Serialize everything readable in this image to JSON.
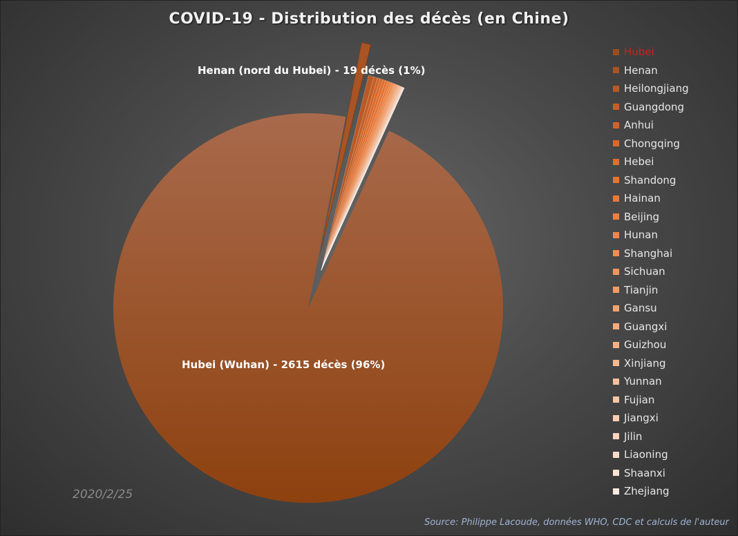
{
  "chart_data": {
    "type": "pie",
    "title": "COVID-19 - Distribution des décès (en Chine)",
    "date": "2020/2/25",
    "source": "Source: Philippe Lacoude, données WHO, CDC et calculs de l'auteur",
    "legend_position": "right",
    "annotations": {
      "hubei": "Hubei (Wuhan) - 2615 décès (96%)",
      "henan": "Henan (nord du Hubei) - 19 décès (1%)"
    },
    "slices": [
      {
        "label": "Hubei",
        "value": 2615,
        "color": "#9a4d1e"
      },
      {
        "label": "Henan",
        "value": 19,
        "color": "#a85424"
      },
      {
        "label": "Heilongjiang",
        "value": 12,
        "color": "#b85a26"
      },
      {
        "label": "Guangdong",
        "value": 8,
        "color": "#c45f27"
      },
      {
        "label": "Anhui",
        "value": 6,
        "color": "#d06428"
      },
      {
        "label": "Chongqing",
        "value": 6,
        "color": "#d9692b"
      },
      {
        "label": "Hebei",
        "value": 6,
        "color": "#e06e2e"
      },
      {
        "label": "Shandong",
        "value": 6,
        "color": "#e57433"
      },
      {
        "label": "Hainan",
        "value": 5,
        "color": "#e97a39"
      },
      {
        "label": "Beijing",
        "value": 4,
        "color": "#ec8040"
      },
      {
        "label": "Hunan",
        "value": 4,
        "color": "#ee8748"
      },
      {
        "label": "Shanghai",
        "value": 3,
        "color": "#f08e52"
      },
      {
        "label": "Sichuan",
        "value": 3,
        "color": "#f1955c"
      },
      {
        "label": "Tianjin",
        "value": 3,
        "color": "#f29c66"
      },
      {
        "label": "Gansu",
        "value": 2,
        "color": "#f3a370"
      },
      {
        "label": "Guangxi",
        "value": 2,
        "color": "#f4aa7b"
      },
      {
        "label": "Guizhou",
        "value": 2,
        "color": "#f5b186"
      },
      {
        "label": "Xinjiang",
        "value": 2,
        "color": "#f6b891"
      },
      {
        "label": "Yunnan",
        "value": 2,
        "color": "#f7bf9c"
      },
      {
        "label": "Fujian",
        "value": 1,
        "color": "#f8c6a7"
      },
      {
        "label": "Jiangxi",
        "value": 1,
        "color": "#f9cdb2"
      },
      {
        "label": "Jilin",
        "value": 1,
        "color": "#fad4bd"
      },
      {
        "label": "Liaoning",
        "value": 1,
        "color": "#fbdbc8"
      },
      {
        "label": "Shaanxi",
        "value": 1,
        "color": "#fce2d3"
      },
      {
        "label": "Zhejiang",
        "value": 1,
        "color": "#fde9de"
      }
    ]
  }
}
